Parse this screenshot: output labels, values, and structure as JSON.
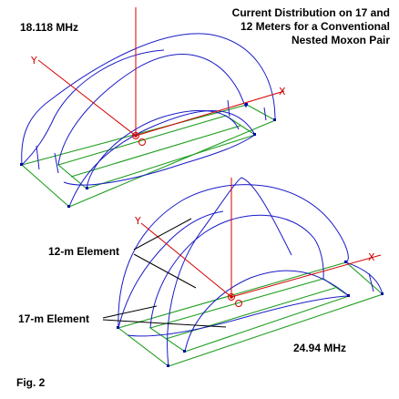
{
  "title": {
    "line1": "Current Distribution on 17 and",
    "line2": "12 Meters for a Conventional",
    "line3": "Nested Moxon Pair"
  },
  "top_panel": {
    "frequency_label": "18.118 MHz"
  },
  "bottom_panel": {
    "frequency_label": "24.94 MHz"
  },
  "callouts": {
    "element_12m": "12-m Element",
    "element_17m": "17-m Element"
  },
  "axis_glyphs": {
    "y": "Y",
    "x": "X"
  },
  "figure_label": "Fig. 2",
  "colors": {
    "current": "#1a1ac8",
    "wire": "#1f9e1f",
    "axis": "#d40000",
    "text": "#000000",
    "node": "#0000aa"
  }
}
